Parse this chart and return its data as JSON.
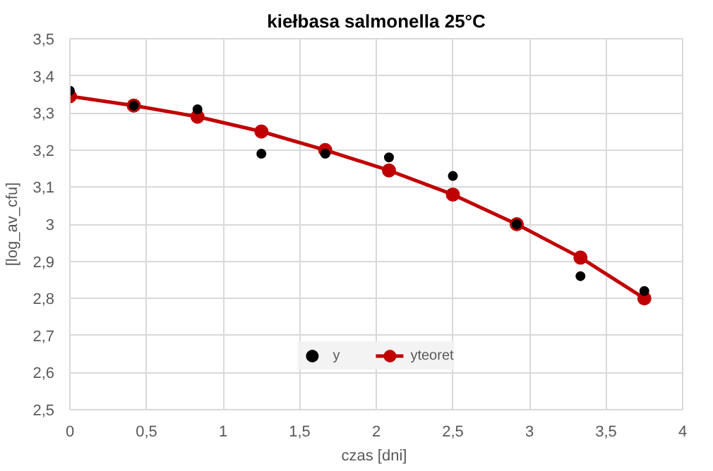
{
  "chart_data": {
    "type": "scatter",
    "title": "kiełbasa salmonella 25°C",
    "xlabel": "czas  [dni]",
    "ylabel": "[log_av_cfu]",
    "x": [
      0,
      0.417,
      0.833,
      1.25,
      1.667,
      2.083,
      2.5,
      2.917,
      3.333,
      3.75
    ],
    "series": [
      {
        "name": "y",
        "color": "#000000",
        "marker": "circle",
        "values": [
          3.36,
          3.32,
          3.31,
          3.19,
          3.19,
          3.18,
          3.13,
          3.0,
          2.86,
          2.82
        ]
      },
      {
        "name": "yteoret",
        "type": "line",
        "color": "#c00000",
        "marker": "circle",
        "values": [
          3.345,
          3.32,
          3.29,
          3.25,
          3.2,
          3.145,
          3.08,
          3.0,
          2.91,
          2.8
        ]
      }
    ],
    "xlim": [
      0,
      4
    ],
    "xticks": [
      {
        "value": 0,
        "label": "0"
      },
      {
        "value": 0.5,
        "label": "0,5"
      },
      {
        "value": 1,
        "label": "1"
      },
      {
        "value": 1.5,
        "label": "1,5"
      },
      {
        "value": 2,
        "label": "2"
      },
      {
        "value": 2.5,
        "label": "2,5"
      },
      {
        "value": 3,
        "label": "3"
      },
      {
        "value": 3.5,
        "label": "3,5"
      },
      {
        "value": 4,
        "label": "4"
      }
    ],
    "ylim": [
      2.5,
      3.5
    ],
    "yticks": [
      {
        "value": 2.5,
        "label": "2,5"
      },
      {
        "value": 2.6,
        "label": "2,6"
      },
      {
        "value": 2.7,
        "label": "2,7"
      },
      {
        "value": 2.8,
        "label": "2,8"
      },
      {
        "value": 2.9,
        "label": "2,9"
      },
      {
        "value": 3,
        "label": "3"
      },
      {
        "value": 3.1,
        "label": "3,1"
      },
      {
        "value": 3.2,
        "label": "3,2"
      },
      {
        "value": 3.3,
        "label": "3,3"
      },
      {
        "value": 3.4,
        "label": "3,4"
      },
      {
        "value": 3.5,
        "label": "3,5"
      }
    ],
    "grid": true,
    "legend": "bottom"
  }
}
